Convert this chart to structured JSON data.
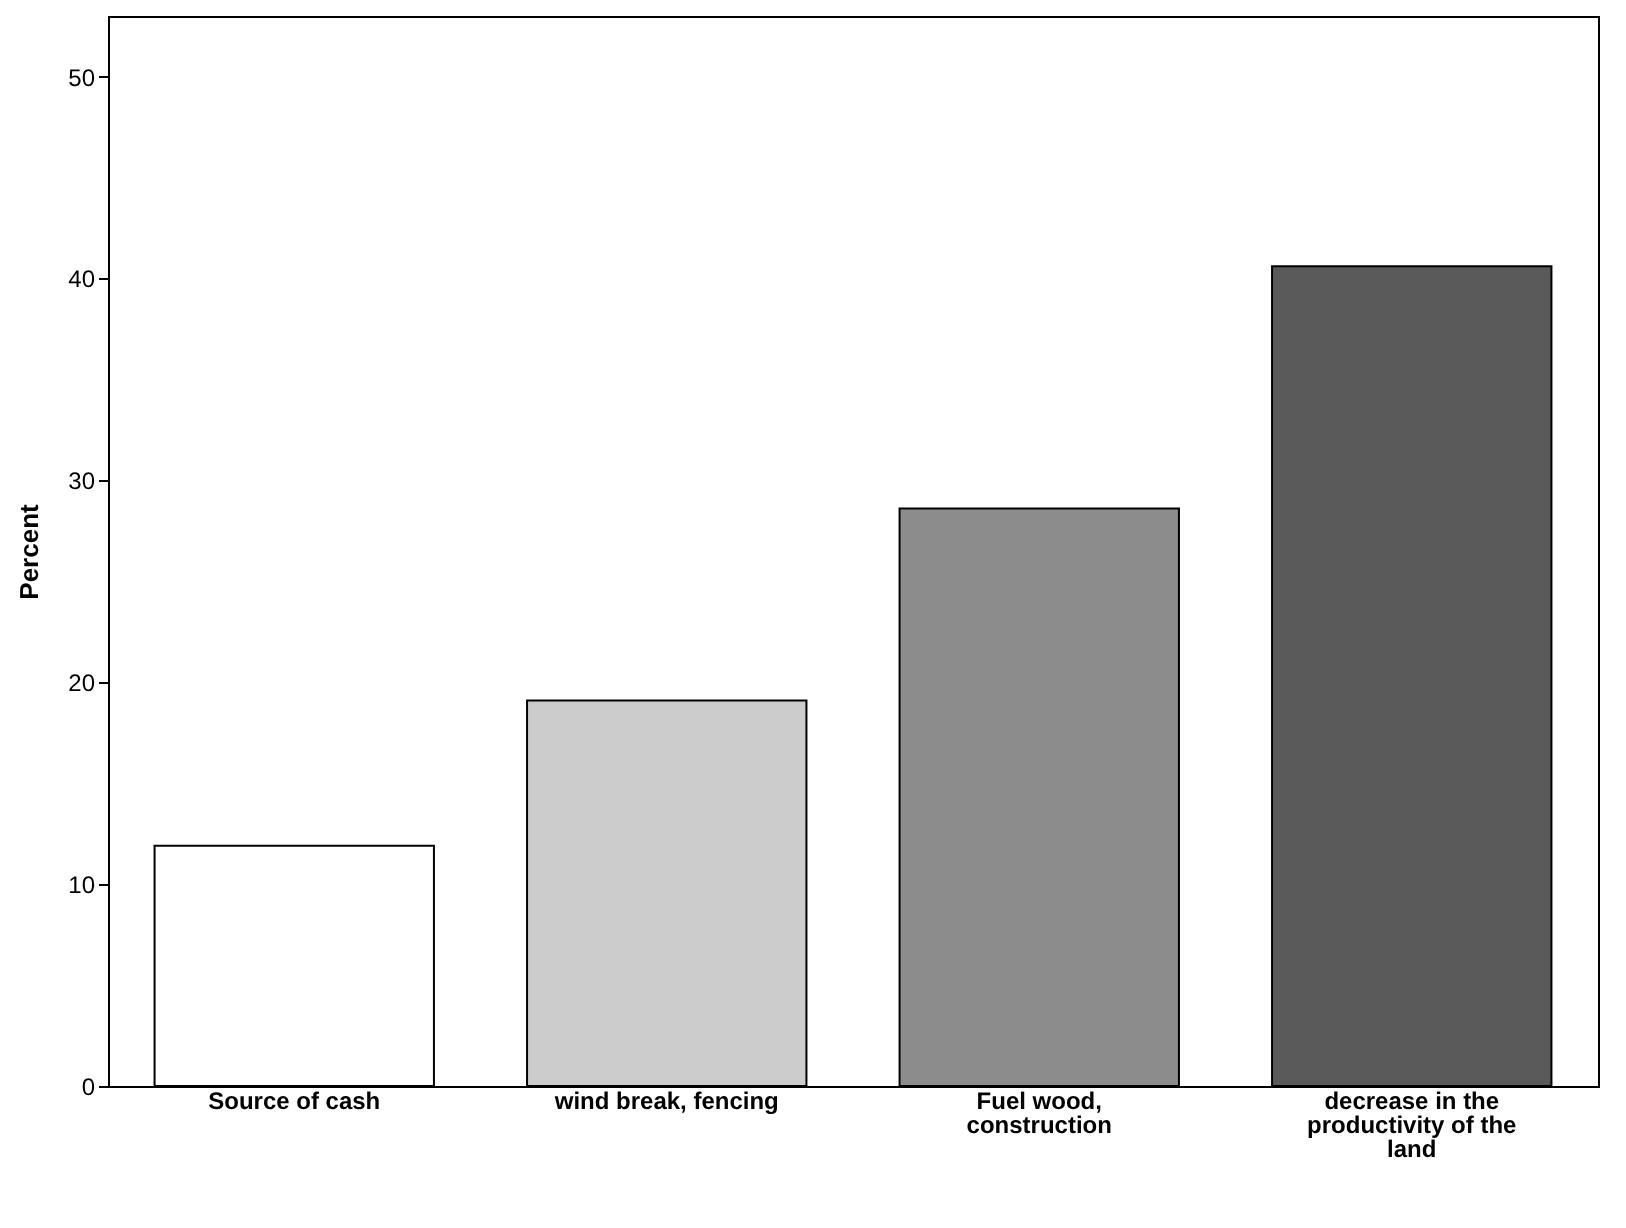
{
  "chart_data": {
    "type": "bar",
    "ylabel": "Percent",
    "categories": [
      "Source of  cash",
      "wind break, fencing",
      "Fuel wood, construction",
      "decrease in the productivity of the land"
    ],
    "values": [
      11.9,
      19.1,
      28.6,
      40.6
    ],
    "colors": [
      "#ffffff",
      "#cccccc",
      "#8c8c8c",
      "#5a5a5a"
    ],
    "ylim": [
      0,
      53
    ],
    "yticks": [
      0,
      10,
      20,
      30,
      40,
      50
    ],
    "grid": false
  }
}
